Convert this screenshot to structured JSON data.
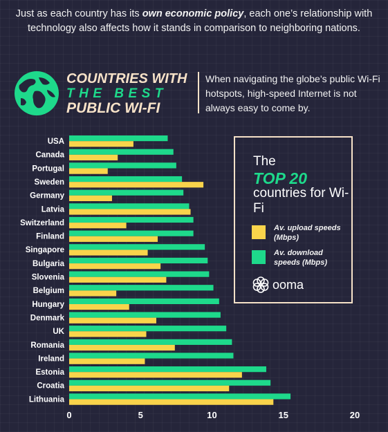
{
  "intro": {
    "part1": "Just as each country has its ",
    "emphasis": "own economic policy",
    "part2": ", each one’s relationship with technology also affects how it stands in comparison to neighboring nations."
  },
  "headline": {
    "line1": "COUNTRIES WITH",
    "line2": "THE BEST",
    "line3": "PUBLIC WI-FI"
  },
  "side_text": "When navigating the globe’s public Wi-Fi hotspots, high-speed Internet is not always easy to come by.",
  "legend": {
    "the": "The",
    "top20": "TOP 20",
    "rest": "countries for Wi-Fi",
    "upload_label": "Av. upload speeds (Mbps)",
    "download_label": "Av. download speeds (Mbps)",
    "logo": "ooma"
  },
  "colors": {
    "upload": "#f9d44b",
    "download": "#1ed98b",
    "background": "#25253a",
    "accent": "#f7e2c8"
  },
  "chart_data": {
    "type": "bar",
    "orientation": "horizontal",
    "categories": [
      "USA",
      "Canada",
      "Portugal",
      "Sweden",
      "Germany",
      "Latvia",
      "Switzerland",
      "Finland",
      "Singapore",
      "Bulgaria",
      "Slovenia",
      "Belgium",
      "Hungary",
      "Denmark",
      "UK",
      "Romania",
      "Ireland",
      "Estonia",
      "Croatia",
      "Lithuania"
    ],
    "series": [
      {
        "name": "Av. download speeds (Mbps)",
        "values": [
          6.9,
          7.3,
          7.5,
          7.9,
          8.0,
          8.4,
          8.7,
          8.7,
          9.5,
          9.7,
          9.8,
          10.1,
          10.5,
          10.6,
          11.0,
          11.4,
          11.5,
          13.8,
          14.1,
          15.5
        ]
      },
      {
        "name": "Av. upload speeds (Mbps)",
        "values": [
          4.5,
          3.4,
          2.7,
          9.4,
          3.0,
          8.5,
          4.0,
          6.2,
          5.5,
          6.4,
          6.8,
          3.3,
          4.2,
          6.1,
          5.4,
          7.4,
          5.3,
          12.1,
          11.2,
          14.3
        ]
      }
    ],
    "xticks": [
      "0",
      "5",
      "10",
      "15",
      "20"
    ],
    "xlim": [
      0,
      20
    ],
    "grid": false,
    "legend": "right"
  }
}
